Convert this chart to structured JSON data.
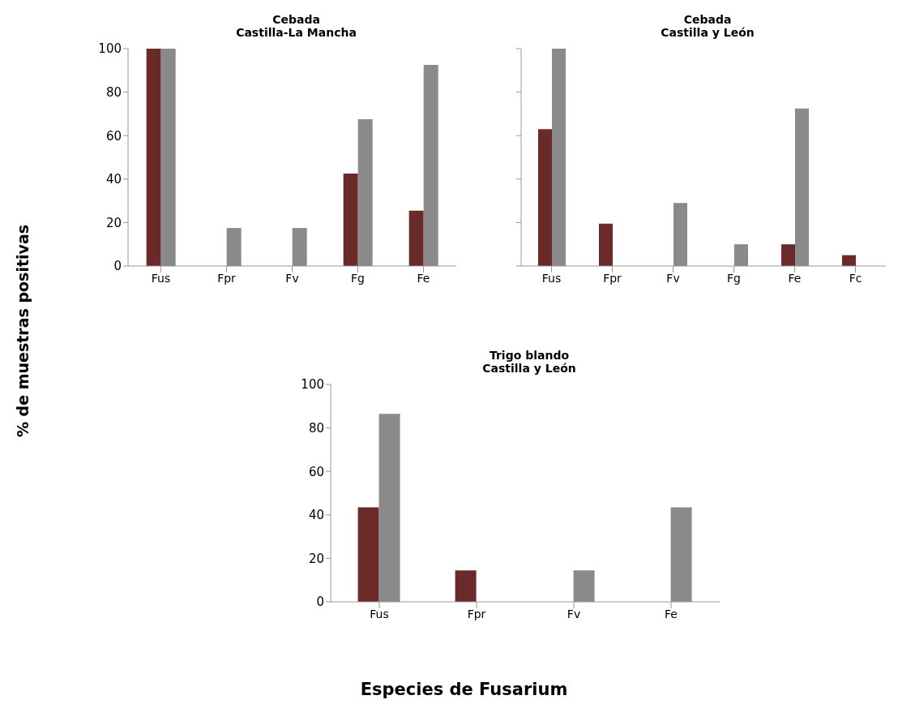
{
  "chart_data": [
    {
      "type": "bar",
      "title": "Cebada\nCastilla-La Mancha",
      "ylabel": "% de muestras positivas",
      "categories": [
        "Fus",
        "Fpr",
        "Fv",
        "Fg",
        "Fe"
      ],
      "series": [
        {
          "color": "#6b2a2a",
          "values": [
            100,
            0,
            0,
            42.5,
            25.5
          ]
        },
        {
          "color": "#8a8a8a",
          "values": [
            100,
            17.5,
            17.5,
            67.5,
            92.5
          ]
        }
      ],
      "ylim": [
        0,
        100
      ],
      "yticks": [
        0,
        20,
        40,
        60,
        80,
        100
      ],
      "grid": false,
      "legend": false
    },
    {
      "type": "bar",
      "title": "Cebada\nCastilla y León",
      "categories": [
        "Fus",
        "Fpr",
        "Fv",
        "Fg",
        "Fe",
        "Fc"
      ],
      "series": [
        {
          "color": "#6b2a2a",
          "values": [
            63,
            19.5,
            0,
            0,
            10,
            5
          ]
        },
        {
          "color": "#8a8a8a",
          "values": [
            100,
            0,
            29,
            10,
            72.5,
            0
          ]
        }
      ],
      "ylim": [
        0,
        100
      ],
      "yticks": [
        0,
        20,
        40,
        60,
        80,
        100
      ],
      "tick_labels": "x",
      "grid": false,
      "legend": false
    },
    {
      "type": "bar",
      "title": "Trigo blando\nCastilla y León",
      "xlabel": "Especies de Fusarium",
      "categories": [
        "Fus",
        "Fpr",
        "Fv",
        "Fe"
      ],
      "series": [
        {
          "color": "#6b2a2a",
          "values": [
            43.5,
            14.5,
            0,
            0
          ]
        },
        {
          "color": "#8a8a8a",
          "values": [
            86.5,
            0,
            14.5,
            43.5
          ]
        }
      ],
      "ylim": [
        0,
        100
      ],
      "yticks": [
        0,
        20,
        40,
        60,
        80,
        100
      ],
      "grid": false,
      "legend": false
    }
  ]
}
